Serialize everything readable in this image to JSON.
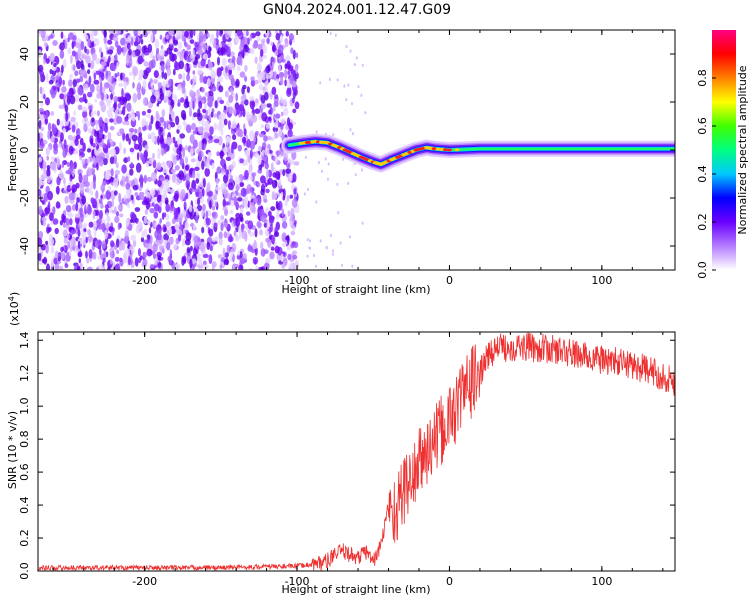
{
  "title": "GN04.2024.001.12.47.G09",
  "chart_data": [
    {
      "type": "heatmap",
      "xlabel": "Height of straight line (km)",
      "ylabel": "Frequency (Hz)",
      "xlim": [
        -270,
        148
      ],
      "ylim": [
        -50,
        50
      ],
      "xticks": [
        -200,
        -100,
        0,
        100
      ],
      "yticks": [
        -40,
        -20,
        0,
        20,
        40
      ],
      "colorbar": {
        "label": "Normalized spectral amplitude",
        "range": [
          0,
          1
        ],
        "ticks": [
          "0.0",
          "0.2",
          "0.4",
          "0.6",
          "0.8"
        ],
        "colors": [
          "#ffffff",
          "#b47cff",
          "#6a00ff",
          "#0000ff",
          "#00c8ff",
          "#00ff80",
          "#40ff00",
          "#ffff00",
          "#ff8000",
          "#ff0000",
          "#ff0080"
        ]
      },
      "noise_region_x": [
        -270,
        -100
      ],
      "signal_track": {
        "x": [
          -105,
          -95,
          -88,
          -80,
          -72,
          -65,
          -58,
          -50,
          -45,
          -38,
          -30,
          -22,
          -15,
          -10,
          0,
          20,
          50,
          100,
          148
        ],
        "y": [
          2,
          3,
          3.5,
          3,
          1,
          -1,
          -3,
          -5,
          -6,
          -4,
          -2,
          0,
          1,
          0.5,
          0,
          0.5,
          0.5,
          0.5,
          0.5
        ]
      }
    },
    {
      "type": "line",
      "xlabel": "Height of straight line (km)",
      "ylabel": "SNR (10 * v/v)",
      "scale_note": "(x10",
      "scale_exp": "4",
      "scale_close": ")",
      "xlim": [
        -270,
        148
      ],
      "ylim": [
        0,
        1.45
      ],
      "xticks": [
        -200,
        -100,
        0,
        100
      ],
      "yticks": [
        "0.0",
        "0.2",
        "0.4",
        "0.6",
        "0.8",
        "1.0",
        "1.2",
        "1.4"
      ],
      "color": "#ee3030",
      "series": [
        {
          "x": [
            -270,
            -200,
            -150,
            -100,
            -90,
            -80,
            -75,
            -70,
            -65,
            -60,
            -55,
            -50,
            -45,
            -40,
            -35,
            -30,
            -25,
            -20,
            -15,
            -10,
            -5,
            0,
            5,
            10,
            15,
            20,
            25,
            30,
            40,
            50,
            60,
            70,
            80,
            90,
            100,
            110,
            120,
            130,
            140,
            148
          ],
          "values": [
            0.02,
            0.02,
            0.02,
            0.03,
            0.04,
            0.06,
            0.1,
            0.12,
            0.1,
            0.08,
            0.12,
            0.06,
            0.15,
            0.4,
            0.35,
            0.5,
            0.55,
            0.65,
            0.72,
            0.78,
            0.85,
            0.92,
            1.0,
            1.1,
            1.15,
            1.2,
            1.3,
            1.35,
            1.36,
            1.36,
            1.35,
            1.34,
            1.32,
            1.3,
            1.28,
            1.27,
            1.25,
            1.22,
            1.18,
            1.15
          ]
        }
      ]
    }
  ]
}
